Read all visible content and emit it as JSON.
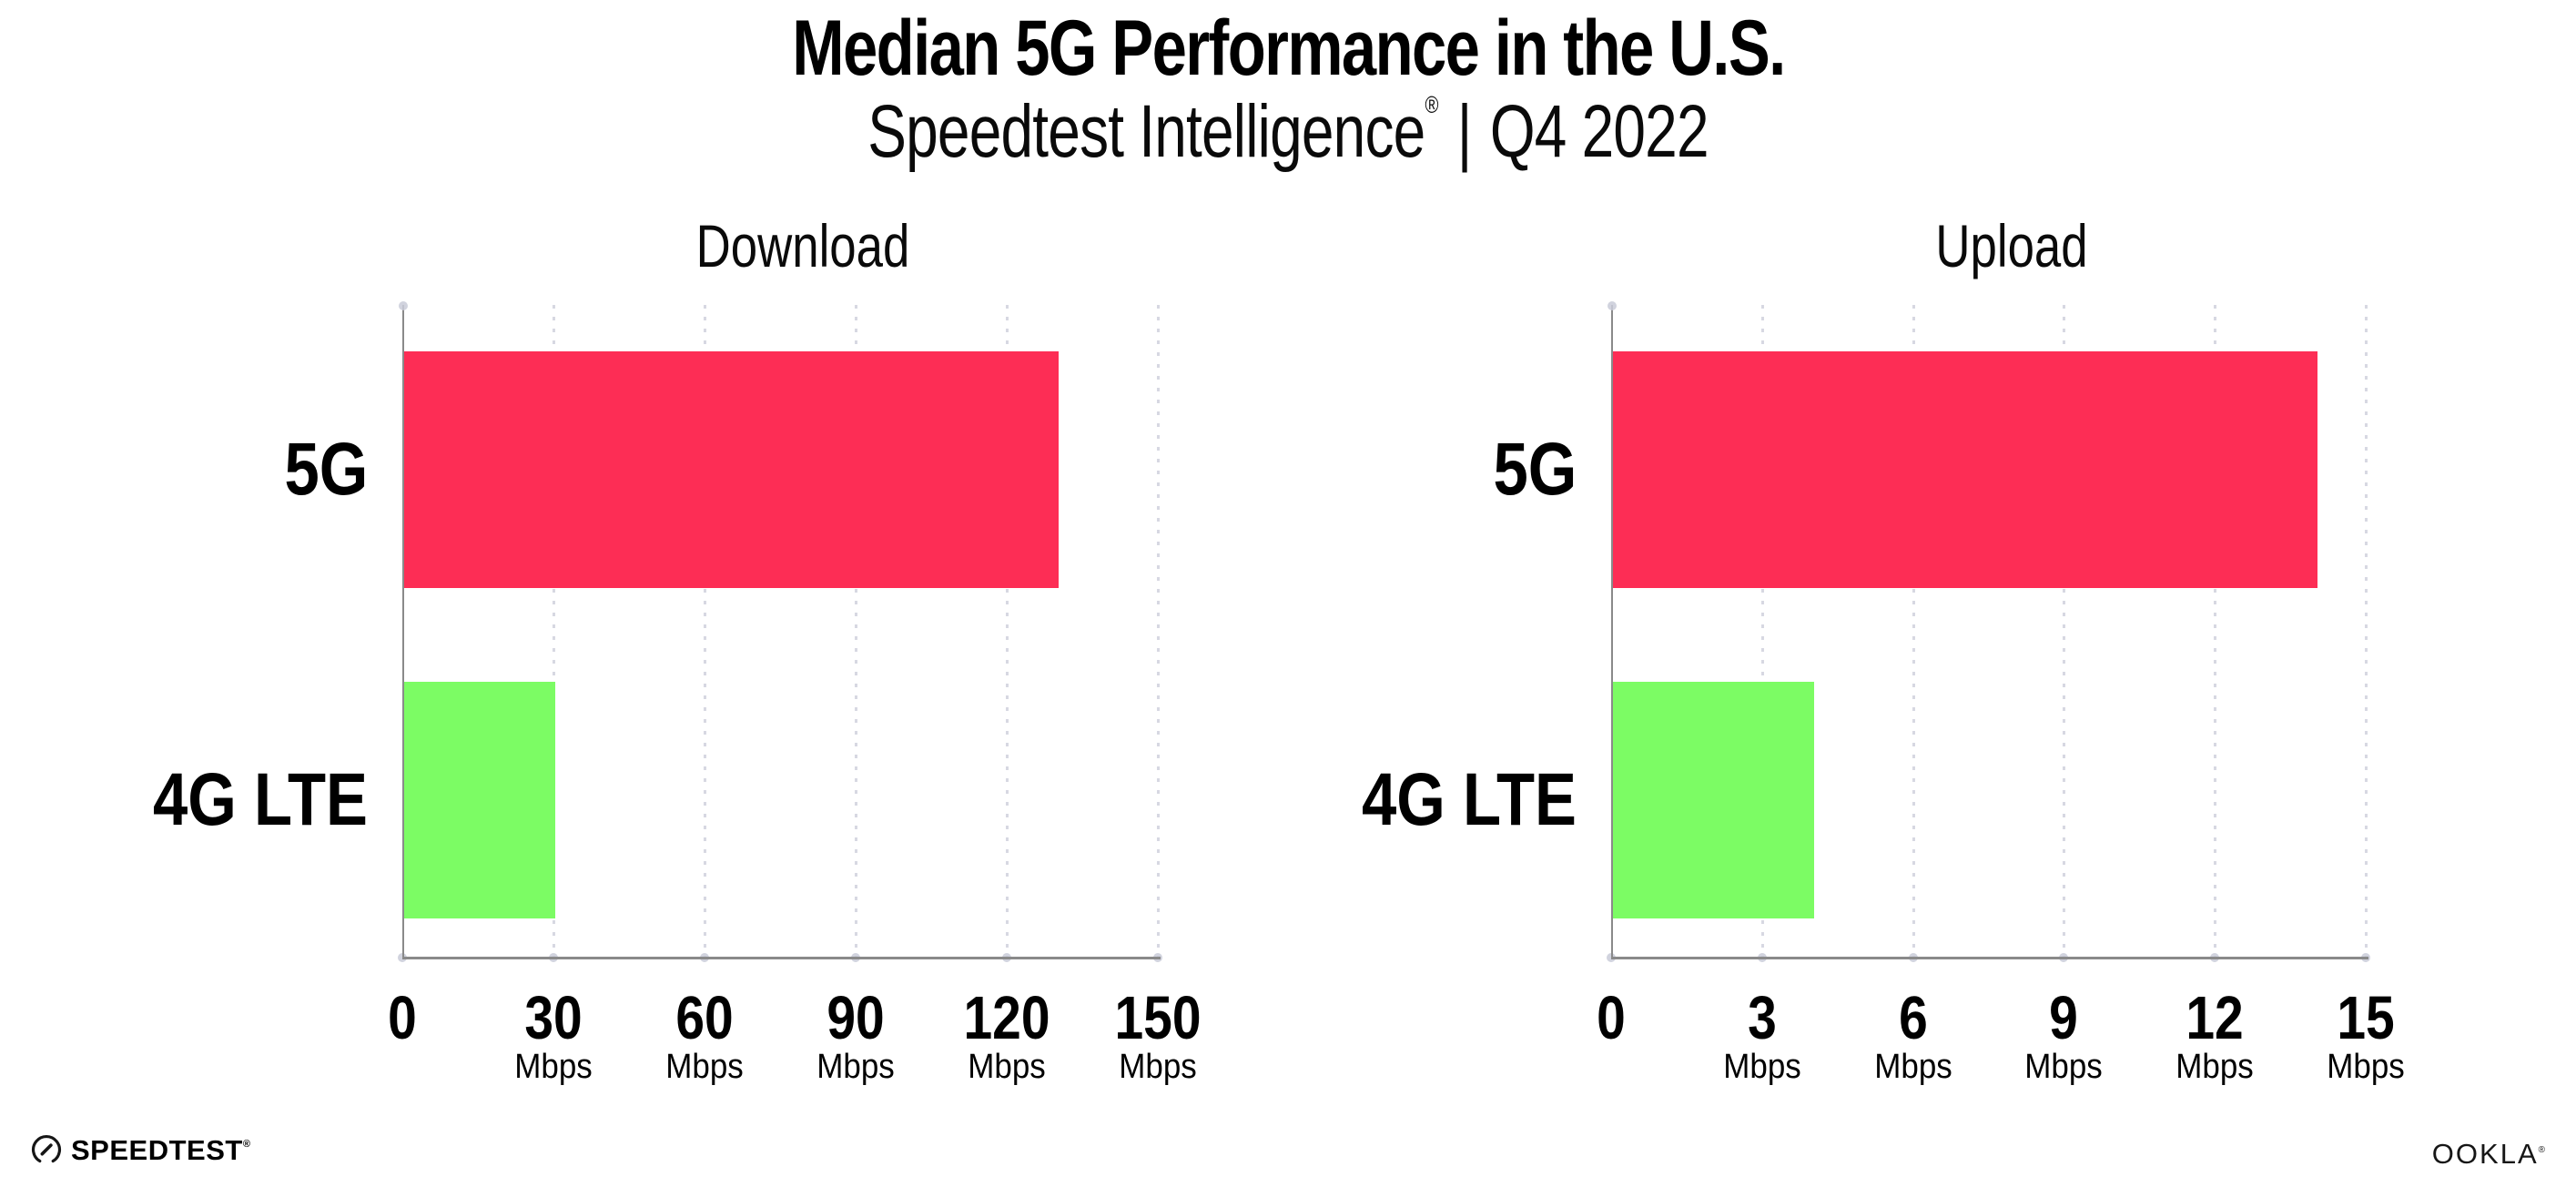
{
  "header": {
    "title": "Median 5G Performance in the U.S.",
    "subtitle_brand": "Speedtest Intelligence",
    "subtitle_reg": "®",
    "subtitle_sep": "|",
    "subtitle_period": "Q4 2022"
  },
  "footer": {
    "speedtest_label": "SPEEDTEST",
    "speedtest_reg": "®",
    "ookla_label": "OOKLA",
    "ookla_reg": "®"
  },
  "colors": {
    "bar_5g": "#FD2D55",
    "bar_4g": "#7CFC64",
    "axis": "#8A8A8A",
    "grid_dot": "#D7D8E2",
    "axis_dot": "#C9CBD8",
    "text": "#000000"
  },
  "chart_data": [
    {
      "type": "bar",
      "orientation": "horizontal",
      "title": "Download",
      "categories": [
        "5G",
        "4G LTE"
      ],
      "values": [
        130,
        30
      ],
      "unit": "Mbps",
      "xlim": [
        0,
        150
      ],
      "xticks": [
        0,
        30,
        60,
        90,
        120,
        150
      ],
      "tick_unit_label": "Mbps",
      "bar_colors": [
        "#FD2D55",
        "#7CFC64"
      ],
      "grid": "vertical-dotted",
      "legend": "none"
    },
    {
      "type": "bar",
      "orientation": "horizontal",
      "title": "Upload",
      "categories": [
        "5G",
        "4G LTE"
      ],
      "values": [
        14,
        4
      ],
      "unit": "Mbps",
      "xlim": [
        0,
        15
      ],
      "xticks": [
        0,
        3,
        6,
        9,
        12,
        15
      ],
      "tick_unit_label": "Mbps",
      "bar_colors": [
        "#FD2D55",
        "#7CFC64"
      ],
      "grid": "vertical-dotted",
      "legend": "none"
    }
  ]
}
